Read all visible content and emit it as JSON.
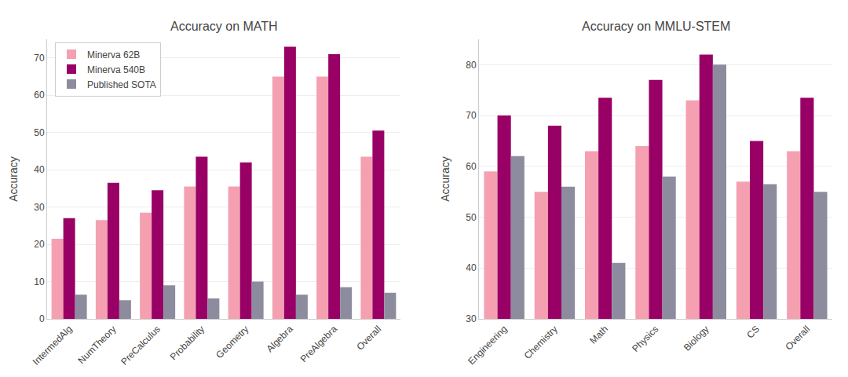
{
  "chart_data": [
    {
      "type": "bar",
      "title": "Accuracy on MATH",
      "ylabel": "Accuracy",
      "categories": [
        "IntermedAlg",
        "NumTheory",
        "PreCalculus",
        "Probability",
        "Geometry",
        "Algebra",
        "PreAlgebra",
        "Overall"
      ],
      "series": [
        {
          "name": "Minerva 62B",
          "color": "#f4a0b0",
          "values": [
            21.5,
            26.5,
            28.5,
            35.5,
            35.5,
            65.0,
            65.0,
            43.5
          ]
        },
        {
          "name": "Minerva 540B",
          "color": "#990066",
          "values": [
            27.0,
            36.5,
            34.5,
            43.5,
            42.0,
            73.0,
            71.0,
            50.5
          ]
        },
        {
          "name": "Published SOTA",
          "color": "#8c8c9e",
          "values": [
            6.5,
            5.0,
            9.0,
            5.5,
            10.0,
            6.5,
            8.5,
            7.0
          ]
        }
      ],
      "ylim": [
        0,
        75
      ],
      "yticks": [
        0,
        10,
        20,
        30,
        40,
        50,
        60,
        70
      ],
      "grid": true,
      "legend": "upper left"
    },
    {
      "type": "bar",
      "title": "Accuracy on MMLU-STEM",
      "ylabel": "Accuracy",
      "categories": [
        "Engineering",
        "Chemistry",
        "Math",
        "Physics",
        "Biology",
        "CS",
        "Overall"
      ],
      "series": [
        {
          "name": "Minerva 62B",
          "color": "#f4a0b0",
          "values": [
            59.0,
            55.0,
            63.0,
            64.0,
            73.0,
            57.0,
            63.0
          ]
        },
        {
          "name": "Minerva 540B",
          "color": "#990066",
          "values": [
            70.0,
            68.0,
            73.5,
            77.0,
            82.0,
            65.0,
            73.5
          ]
        },
        {
          "name": "Published SOTA",
          "color": "#8c8c9e",
          "values": [
            62.0,
            56.0,
            41.0,
            58.0,
            80.0,
            56.5,
            55.0
          ]
        }
      ],
      "ylim": [
        30,
        85
      ],
      "yticks": [
        30,
        40,
        50,
        60,
        70,
        80
      ],
      "grid": true
    }
  ]
}
